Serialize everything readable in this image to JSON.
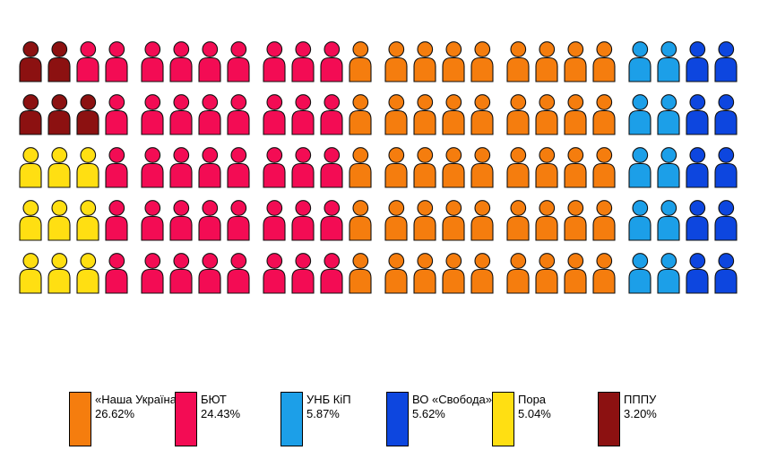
{
  "chart_data": {
    "type": "pictogram",
    "title": "",
    "description": "Seat/vote distribution pictogram: 120 person icons in 5 rows of 24 (6 groups of 4), colored by party",
    "legend_position": "bottom",
    "rows": 5,
    "icons_per_row": 24,
    "group_size": 4,
    "total_icons": 120,
    "parties": [
      {
        "name": "«Наша Україна»",
        "percent": "26.62%",
        "color": "#F57D0E",
        "letter": "O",
        "icon_count": 45
      },
      {
        "name": "БЮТ",
        "percent": "24.43%",
        "color": "#F30C54",
        "letter": "P",
        "icon_count": 41
      },
      {
        "name": "УНБ КіП",
        "percent": "5.87%",
        "color": "#1C9FE8",
        "letter": "L",
        "icon_count": 10
      },
      {
        "name": "ВО «Свобода»",
        "percent": "5.62%",
        "color": "#0D46DF",
        "letter": "B",
        "icon_count": 10
      },
      {
        "name": "Пора",
        "percent": "5.04%",
        "color": "#FFDF12",
        "letter": "Y",
        "icon_count": 9
      },
      {
        "name": "ПППУ",
        "percent": "3.20%",
        "color": "#8C1111",
        "letter": "D",
        "icon_count": 5
      }
    ],
    "grid": [
      "DDPPPPPPPPPOOOOOOOOOLLBB",
      "DDDPPPPPPPPOOOOOOOOOLLBB",
      "YYYPPPPPPPPOOOOOOOOOLLBB",
      "YYYPPPPPPPPOOOOOOOOOLLBB",
      "YYYPPPPPPPPOOOOOOOOOLLBB"
    ],
    "outline_color": "#111111",
    "background_color": "#ffffff"
  }
}
